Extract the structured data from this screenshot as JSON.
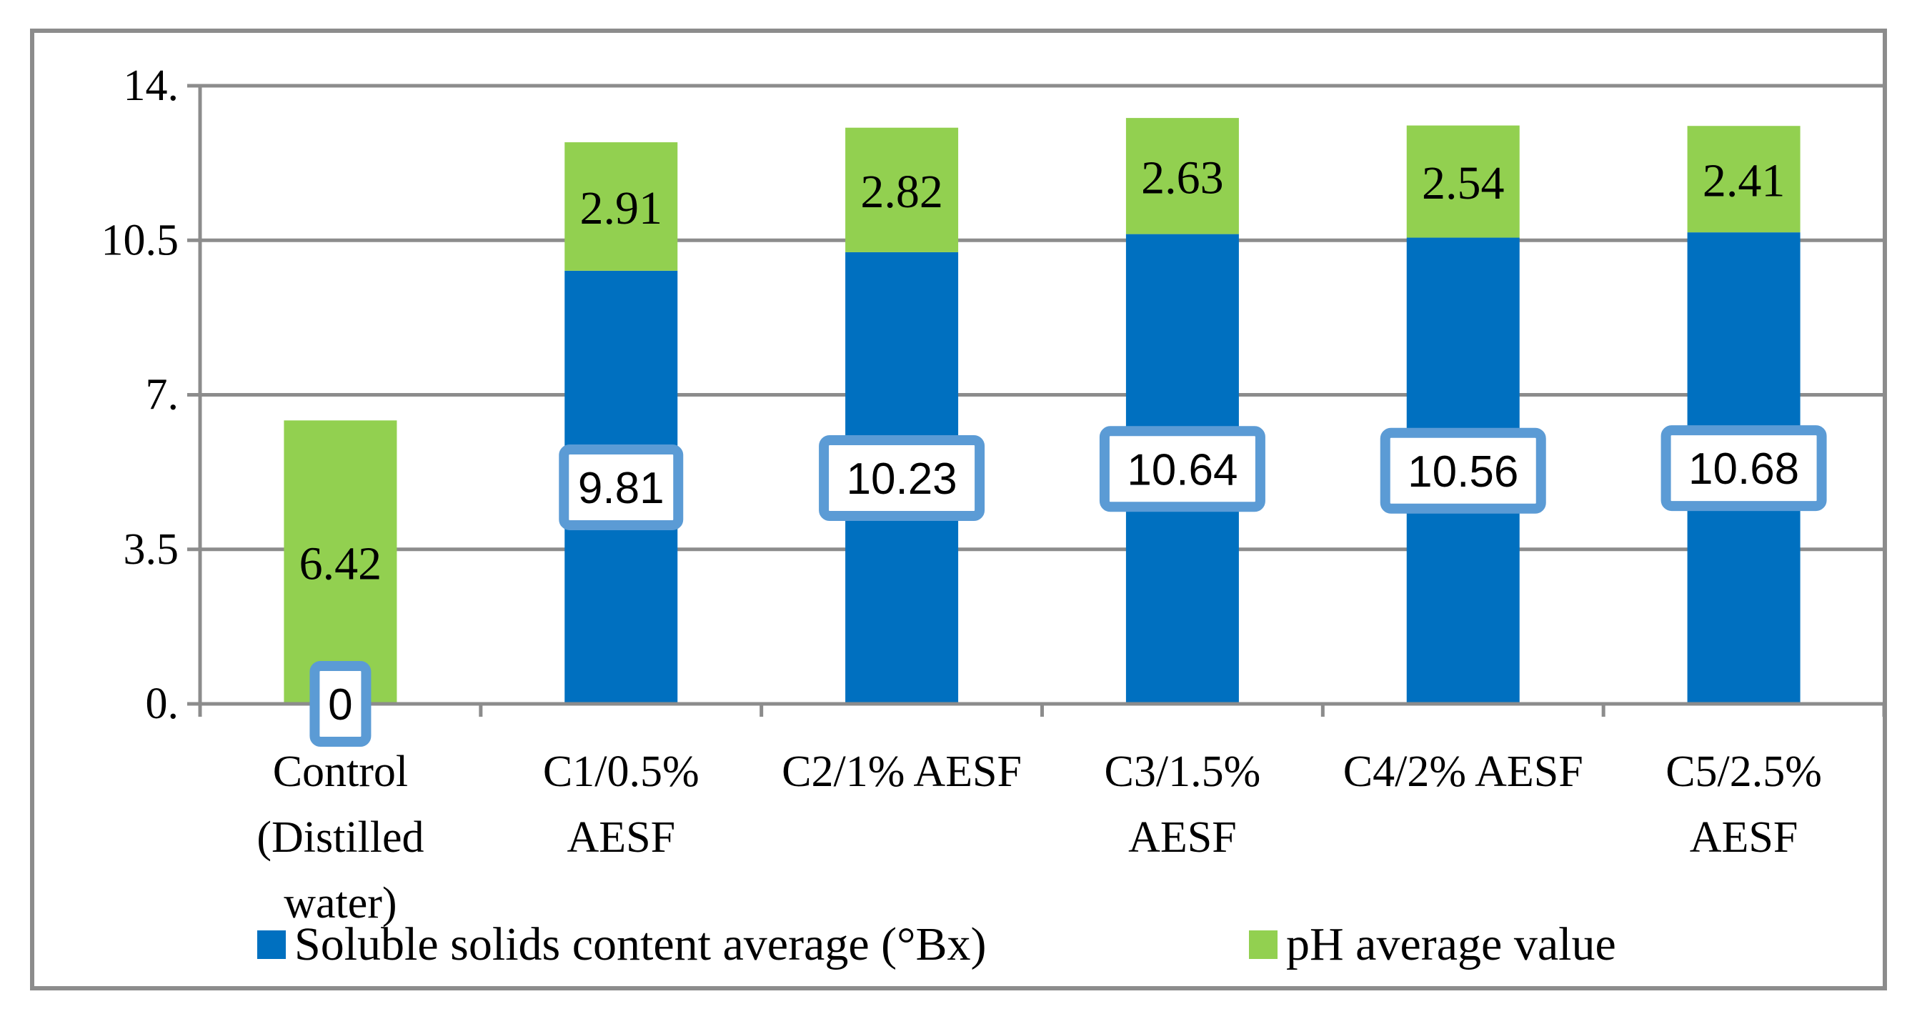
{
  "chart_data": {
    "type": "bar",
    "stacked": true,
    "title": "",
    "xlabel": "",
    "ylabel": "",
    "ylim": [
      0,
      14
    ],
    "yticks": [
      0,
      3.5,
      7,
      10.5,
      14
    ],
    "ytick_labels": [
      "0.",
      "3.5",
      "7.",
      "10.5",
      "14."
    ],
    "grid": true,
    "legend_position": "bottom",
    "categories": [
      [
        "Control",
        "(Distilled",
        "water)"
      ],
      [
        "C1/0.5%",
        "AESF"
      ],
      [
        "C2/1% AESF"
      ],
      [
        "C3/1.5%",
        "AESF"
      ],
      [
        "C4/2% AESF"
      ],
      [
        "C5/2.5%",
        "AESF"
      ]
    ],
    "series": [
      {
        "name": "Soluble solids content average (°Bx)",
        "color": "#0070c0",
        "values": [
          0,
          9.81,
          10.23,
          10.64,
          10.56,
          10.68
        ],
        "labels": [
          "0",
          "9.81",
          "10.23",
          "10.64",
          "10.56",
          "10.68"
        ]
      },
      {
        "name": "pH average value",
        "color": "#92d050",
        "values": [
          6.42,
          2.91,
          2.82,
          2.63,
          2.54,
          2.41
        ],
        "labels": [
          "6.42",
          "2.91",
          "2.82",
          "2.63",
          "2.54",
          "2.41"
        ]
      }
    ]
  }
}
